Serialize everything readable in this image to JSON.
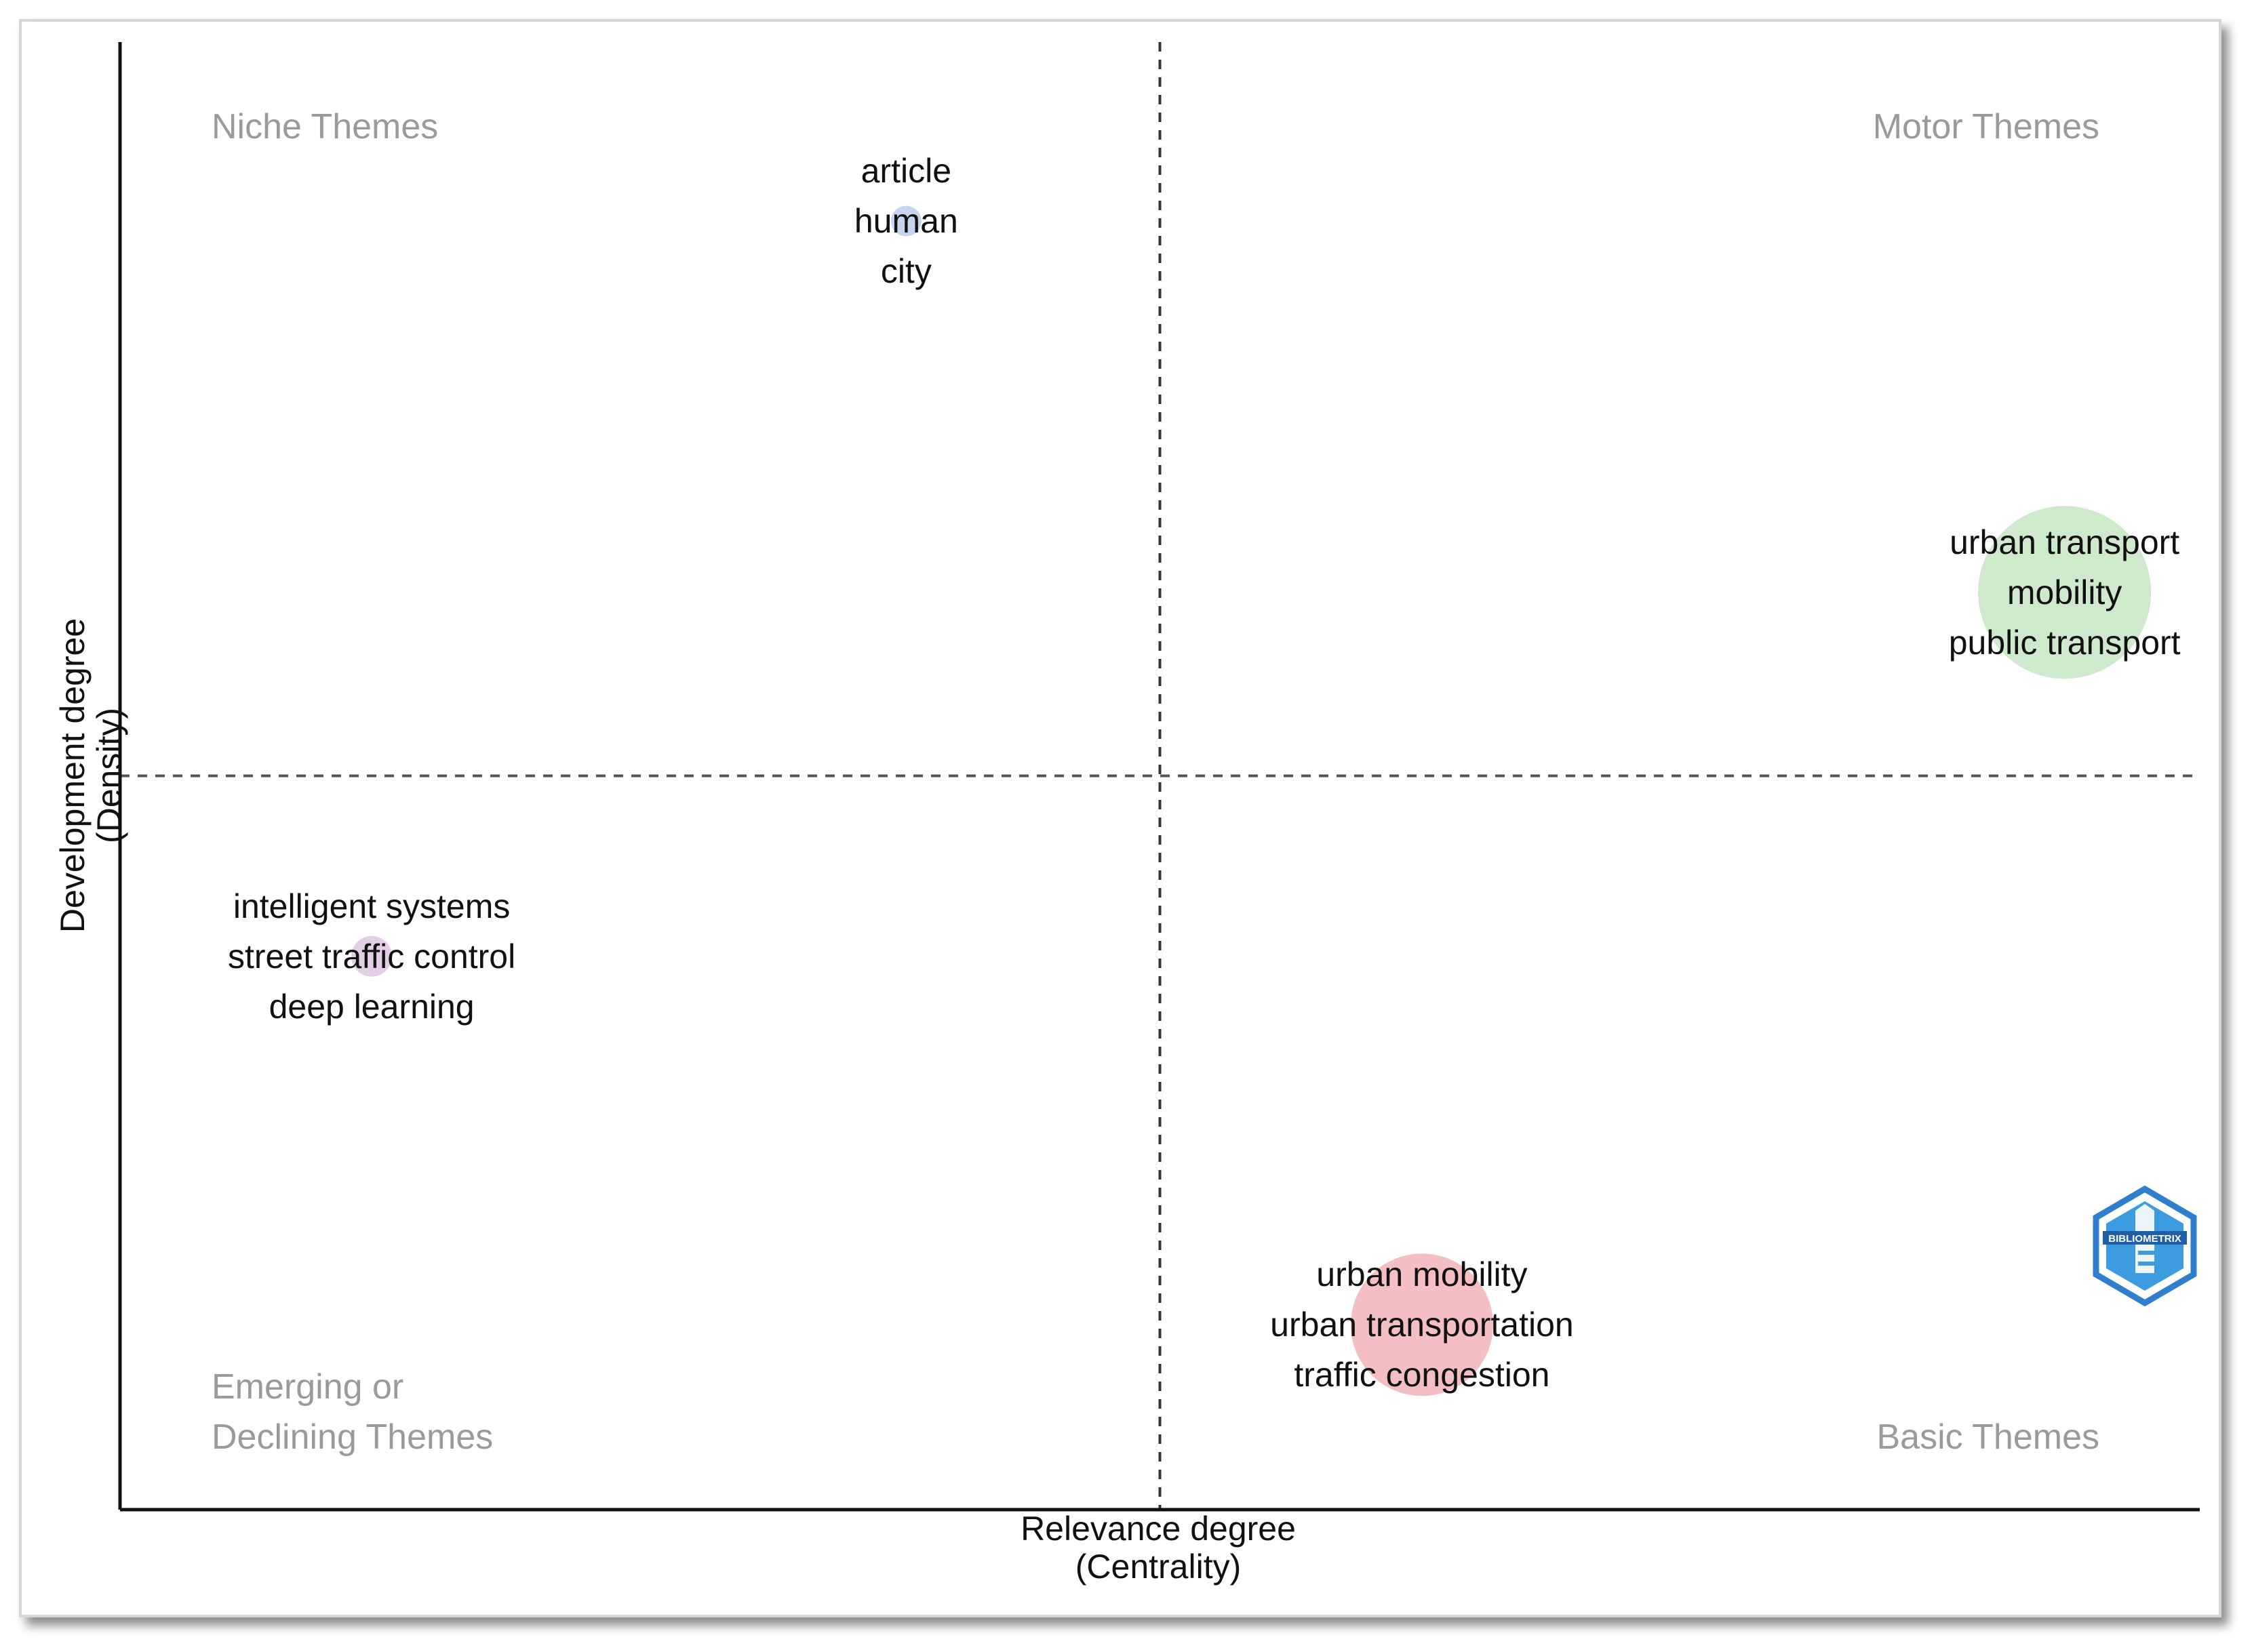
{
  "chart_data": {
    "type": "scatter",
    "subtype": "thematic-map",
    "xlabel": "Relevance degree",
    "xlabel_sub": "(Centrality)",
    "ylabel": "Development degree",
    "ylabel_sub": "(Density)",
    "xlim": [
      0,
      100
    ],
    "ylim": [
      0,
      100
    ],
    "divider_x": 50,
    "divider_y": 50,
    "quadrants": {
      "top_left": "Niche Themes",
      "top_right": "Motor Themes",
      "bottom_left_line1": "Emerging or",
      "bottom_left_line2": "Declining Themes",
      "bottom_right": "Basic Themes"
    },
    "clusters": [
      {
        "id": "c1",
        "x": 37.8,
        "y": 87.8,
        "size": 1.5,
        "color": "#c6d5ee",
        "keywords": [
          "article",
          "human",
          "city"
        ]
      },
      {
        "id": "c2",
        "x": 93.5,
        "y": 62.5,
        "size": 8.5,
        "color": "#cfe9cc",
        "keywords": [
          "urban transport",
          "mobility",
          "public transport"
        ]
      },
      {
        "id": "c3",
        "x": 12.1,
        "y": 37.7,
        "size": 2.0,
        "color": "#e2cfe5",
        "keywords": [
          "intelligent systems",
          "street traffic control",
          "deep learning"
        ]
      },
      {
        "id": "c4",
        "x": 62.6,
        "y": 12.6,
        "size": 7.0,
        "color": "#f3bfc2",
        "keywords": [
          "urban mobility",
          "urban transportation",
          "traffic congestion"
        ]
      }
    ],
    "logo_text": "BIBLIOMETRIX"
  }
}
